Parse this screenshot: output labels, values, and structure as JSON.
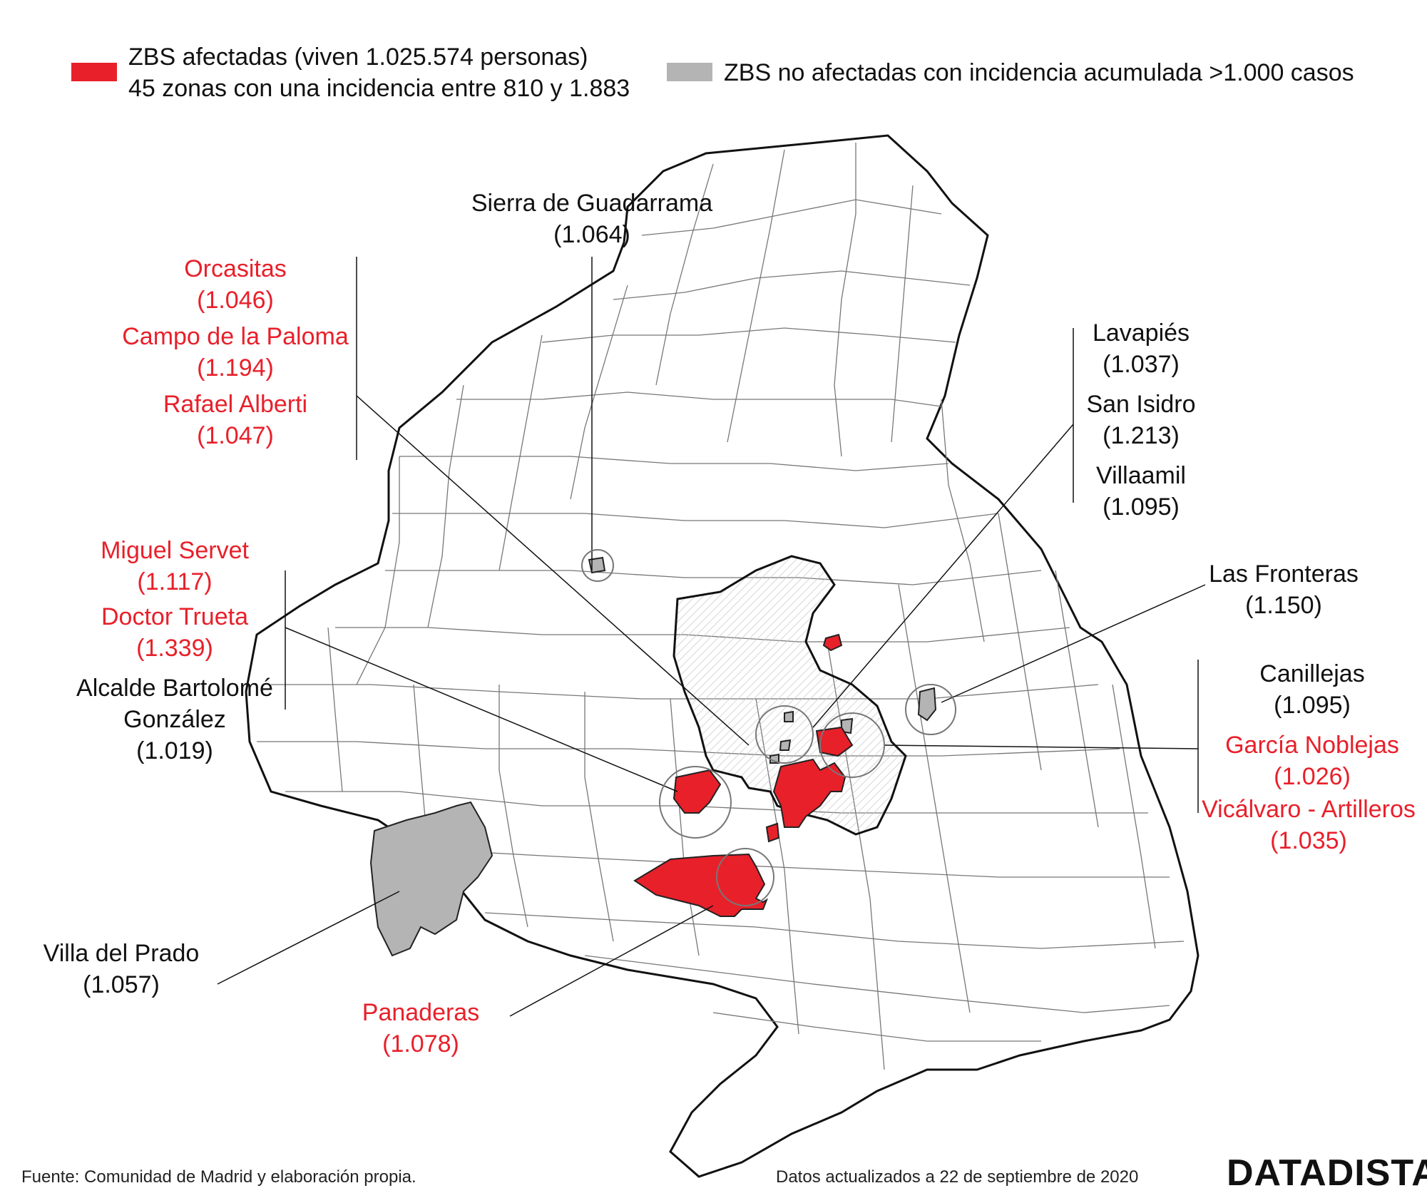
{
  "legend": {
    "affected_line1": "ZBS afectadas (viven 1.025.574 personas)",
    "affected_line2": "45 zonas con una incidencia entre 810 y 1.883",
    "affected_color": "#e8202a",
    "unaffected": "ZBS no afectadas con incidencia acumulada >1.000 casos",
    "unaffected_color": "#b4b4b4"
  },
  "labels": {
    "sierra": {
      "name": "Sierra de Guadarrama",
      "value": "(1.064)"
    },
    "orcasitas": {
      "name": "Orcasitas",
      "value": "(1.046)"
    },
    "campo": {
      "name": "Campo de la Paloma",
      "value": "(1.194)"
    },
    "rafael": {
      "name": "Rafael Alberti",
      "value": "(1.047)"
    },
    "lavapies": {
      "name": "Lavapiés",
      "value": "(1.037)"
    },
    "sanisidro": {
      "name": "San Isidro",
      "value": "(1.213)"
    },
    "villaamil": {
      "name": "Villaamil",
      "value": "(1.095)"
    },
    "miguel": {
      "name": "Miguel Servet",
      "value": "(1.117)"
    },
    "doctor": {
      "name": "Doctor Trueta",
      "value": "(1.339)"
    },
    "alcalde": {
      "name1": "Alcalde Bartolomé",
      "name2": "González",
      "value": "(1.019)"
    },
    "fronteras": {
      "name": "Las Fronteras",
      "value": "(1.150)"
    },
    "canillejas": {
      "name": "Canillejas",
      "value": "(1.095)"
    },
    "garcia": {
      "name": "García Noblejas",
      "value": "(1.026)"
    },
    "vicalvaro": {
      "name": "Vicálvaro - Artilleros",
      "value": "(1.035)"
    },
    "villaprado": {
      "name": "Villa del Prado",
      "value": "(1.057)"
    },
    "panaderas": {
      "name": "Panaderas",
      "value": "(1.078)"
    }
  },
  "footer": {
    "source": "Fuente: Comunidad de Madrid y elaboración propia.",
    "updated": "Datos actualizados a 22 de septiembre de 2020",
    "brand": "DATADISTA"
  }
}
